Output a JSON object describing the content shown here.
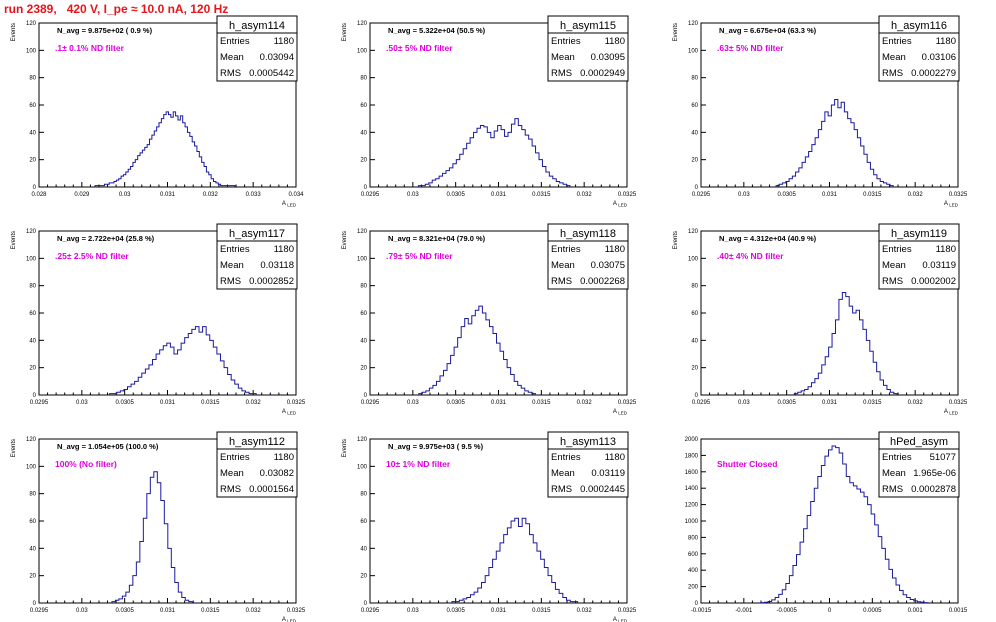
{
  "title": "run 2389,   420 V, I_pe ≈ 10.0 nA, 120 Hz",
  "colors": {
    "title": "#e8141a",
    "line": "#1a1aa0",
    "filter": "#e000e0",
    "frame": "#000000"
  },
  "stat_labels": {
    "entries": "Entries",
    "mean": "Mean",
    "rms": "RMS"
  },
  "chart_data": [
    {
      "type": "line",
      "name": "h_asym114",
      "navg": "N_avg = 9.875e+02 ( 0.9 %)",
      "filter": ".1± 0.1% ND filter",
      "entries": "1180",
      "mean": "0.03094",
      "rms": "0.0005442",
      "xlabel": "A_LED",
      "ylabel": "Events",
      "xlim": [
        0.028,
        0.034
      ],
      "ylim": [
        0,
        120
      ],
      "xticks": [
        "0.028",
        "0.029",
        "0.03",
        "0.031",
        "0.032",
        "0.033",
        "0.034"
      ],
      "yticks": [
        "0",
        "20",
        "40",
        "60",
        "80",
        "100",
        "120"
      ],
      "y": [
        1,
        1,
        1,
        1,
        2,
        2,
        3,
        3,
        4,
        5,
        6,
        8,
        9,
        11,
        13,
        15,
        18,
        20,
        23,
        25,
        27,
        29,
        31,
        35,
        38,
        41,
        44,
        47,
        50,
        53,
        55,
        53,
        51,
        55,
        52,
        49,
        52,
        47,
        44,
        40,
        37,
        33,
        30,
        26,
        22,
        18,
        15,
        11,
        9,
        6,
        4,
        3,
        2,
        1,
        1,
        1,
        1,
        1,
        1
      ]
    },
    {
      "type": "line",
      "name": "h_asym115",
      "navg": "N_avg = 5.322e+04 (50.5 %)",
      "filter": ".50± 5% ND filter",
      "entries": "1180",
      "mean": "0.03095",
      "rms": "0.0002949",
      "xlabel": "A_LED",
      "ylabel": "Events",
      "xlim": [
        0.0295,
        0.0325
      ],
      "ylim": [
        0,
        120
      ],
      "xticks": [
        "0.0295",
        "0.03",
        "0.0305",
        "0.031",
        "0.0315",
        "0.032",
        "0.0325"
      ],
      "yticks": [
        "0",
        "20",
        "40",
        "60",
        "80",
        "100",
        "120"
      ],
      "y": [
        1,
        1,
        2,
        3,
        5,
        6,
        8,
        10,
        12,
        14,
        17,
        20,
        24,
        28,
        32,
        36,
        40,
        43,
        45,
        44,
        40,
        36,
        41,
        45,
        42,
        37,
        40,
        46,
        50,
        45,
        42,
        38,
        35,
        30,
        25,
        20,
        15,
        11,
        8,
        6,
        4,
        3,
        2,
        1
      ]
    },
    {
      "type": "line",
      "name": "h_asym116",
      "navg": "N_avg = 6.675e+04 (63.3 %)",
      "filter": ".63± 5% ND filter",
      "entries": "1180",
      "mean": "0.03106",
      "rms": "0.0002279",
      "xlabel": "A_LED",
      "ylabel": "Events",
      "xlim": [
        0.0295,
        0.0325
      ],
      "ylim": [
        0,
        120
      ],
      "xticks": [
        "0.0295",
        "0.03",
        "0.0305",
        "0.031",
        "0.0315",
        "0.032",
        "0.0325"
      ],
      "yticks": [
        "0",
        "20",
        "40",
        "60",
        "80",
        "100",
        "120"
      ],
      "y": [
        1,
        2,
        3,
        4,
        6,
        8,
        11,
        14,
        18,
        22,
        26,
        31,
        36,
        42,
        48,
        55,
        52,
        60,
        64,
        58,
        62,
        55,
        50,
        47,
        42,
        36,
        30,
        24,
        18,
        13,
        9,
        6,
        4,
        3,
        2,
        1
      ]
    },
    {
      "type": "line",
      "name": "h_asym117",
      "navg": "N_avg = 2.722e+04 (25.8 %)",
      "filter": ".25± 2.5% ND filter",
      "entries": "1180",
      "mean": "0.03118",
      "rms": "0.0002852",
      "xlabel": "A_LED",
      "ylabel": "Events",
      "xlim": [
        0.0295,
        0.0325
      ],
      "ylim": [
        0,
        120
      ],
      "xticks": [
        "0.0295",
        "0.03",
        "0.0305",
        "0.031",
        "0.0315",
        "0.032",
        "0.0325"
      ],
      "yticks": [
        "0",
        "20",
        "40",
        "60",
        "80",
        "100",
        "120"
      ],
      "y": [
        1,
        1,
        2,
        3,
        4,
        6,
        8,
        10,
        13,
        16,
        19,
        22,
        26,
        30,
        33,
        36,
        38,
        35,
        30,
        33,
        38,
        42,
        45,
        48,
        50,
        46,
        50,
        44,
        40,
        35,
        30,
        25,
        20,
        15,
        11,
        8,
        5,
        3,
        2,
        1,
        1
      ]
    },
    {
      "type": "line",
      "name": "h_asym118",
      "navg": "N_avg = 8.321e+04 (79.0 %)",
      "filter": ".79± 5% ND filter",
      "entries": "1180",
      "mean": "0.03075",
      "rms": "0.0002268",
      "xlabel": "A_LED",
      "ylabel": "Events",
      "xlim": [
        0.0295,
        0.0325
      ],
      "ylim": [
        0,
        120
      ],
      "xticks": [
        "0.0295",
        "0.03",
        "0.0305",
        "0.031",
        "0.0315",
        "0.032",
        "0.0325"
      ],
      "yticks": [
        "0",
        "20",
        "40",
        "60",
        "80",
        "100",
        "120"
      ],
      "y": [
        1,
        2,
        3,
        5,
        7,
        10,
        14,
        18,
        23,
        29,
        35,
        42,
        50,
        56,
        52,
        58,
        62,
        65,
        60,
        55,
        50,
        45,
        38,
        32,
        26,
        20,
        15,
        10,
        7,
        5,
        3,
        2,
        1
      ]
    },
    {
      "type": "line",
      "name": "h_asym119",
      "navg": "N_avg = 4.312e+04 (40.9 %)",
      "filter": ".40± 4% ND filter",
      "entries": "1180",
      "mean": "0.03119",
      "rms": "0.0002002",
      "xlabel": "A_LED",
      "ylabel": "Events",
      "xlim": [
        0.0295,
        0.0325
      ],
      "ylim": [
        0,
        120
      ],
      "xticks": [
        "0.0295",
        "0.03",
        "0.0305",
        "0.031",
        "0.0315",
        "0.032",
        "0.0325"
      ],
      "yticks": [
        "0",
        "20",
        "40",
        "60",
        "80",
        "100",
        "120"
      ],
      "y": [
        1,
        2,
        3,
        4,
        6,
        9,
        12,
        16,
        22,
        28,
        35,
        45,
        55,
        70,
        75,
        72,
        65,
        60,
        62,
        55,
        48,
        40,
        32,
        24,
        17,
        11,
        7,
        4,
        2,
        1
      ]
    },
    {
      "type": "line",
      "name": "h_asym112",
      "navg": "N_avg = 1.054e+05 (100.0 %)",
      "filter": "100% (No filter)",
      "entries": "1180",
      "mean": "0.03082",
      "rms": "0.0001564",
      "xlabel": "A_LED",
      "ylabel": "Events",
      "xlim": [
        0.0295,
        0.0325
      ],
      "ylim": [
        0,
        120
      ],
      "xticks": [
        "0.0295",
        "0.03",
        "0.0305",
        "0.031",
        "0.0315",
        "0.032",
        "0.0325"
      ],
      "yticks": [
        "0",
        "20",
        "40",
        "60",
        "80",
        "100",
        "120"
      ],
      "y": [
        1,
        2,
        3,
        5,
        8,
        13,
        20,
        30,
        45,
        62,
        80,
        92,
        96,
        88,
        75,
        58,
        40,
        26,
        15,
        8,
        4,
        2,
        1
      ]
    },
    {
      "type": "line",
      "name": "h_asym113",
      "navg": "N_avg = 9.975e+03 ( 9.5 %)",
      "filter": "10± 1% ND filter",
      "entries": "1180",
      "mean": "0.03119",
      "rms": "0.0002445",
      "xlabel": "A_LED",
      "ylabel": "Events",
      "xlim": [
        0.0295,
        0.0325
      ],
      "ylim": [
        0,
        120
      ],
      "xticks": [
        "0.0295",
        "0.03",
        "0.0305",
        "0.031",
        "0.0315",
        "0.032",
        "0.0325"
      ],
      "yticks": [
        "0",
        "20",
        "40",
        "60",
        "80",
        "100",
        "120"
      ],
      "y": [
        1,
        1,
        2,
        3,
        4,
        6,
        8,
        11,
        15,
        20,
        26,
        32,
        38,
        44,
        50,
        55,
        60,
        62,
        56,
        62,
        58,
        50,
        44,
        38,
        32,
        26,
        20,
        15,
        10,
        7,
        4,
        2,
        1,
        1
      ]
    },
    {
      "type": "line",
      "name": "hPed_asym",
      "navg": "",
      "filter": "Shutter Closed",
      "entries": "51077",
      "mean": "1.965e-06",
      "rms": "0.0002878",
      "xlabel": "",
      "ylabel": "",
      "xlim": [
        -0.0015,
        0.0015
      ],
      "ylim": [
        0,
        2100
      ],
      "xticks": [
        "-0.0015",
        "-0.001",
        "-0.0005",
        "0",
        "0.0005",
        "0.001",
        "0.0015"
      ],
      "yticks": [
        "0",
        "200",
        "400",
        "600",
        "800",
        "1000",
        "1200",
        "1400",
        "1600",
        "1800",
        "2000"
      ],
      "y": [
        5,
        10,
        20,
        40,
        70,
        110,
        170,
        250,
        350,
        480,
        620,
        780,
        950,
        1120,
        1300,
        1470,
        1620,
        1760,
        1880,
        1960,
        2010,
        1990,
        1920,
        1780,
        1620,
        1540,
        1500,
        1460,
        1420,
        1360,
        1260,
        1140,
        1000,
        850,
        700,
        560,
        430,
        320,
        230,
        160,
        105,
        70,
        45,
        28,
        16,
        9,
        5
      ]
    }
  ]
}
